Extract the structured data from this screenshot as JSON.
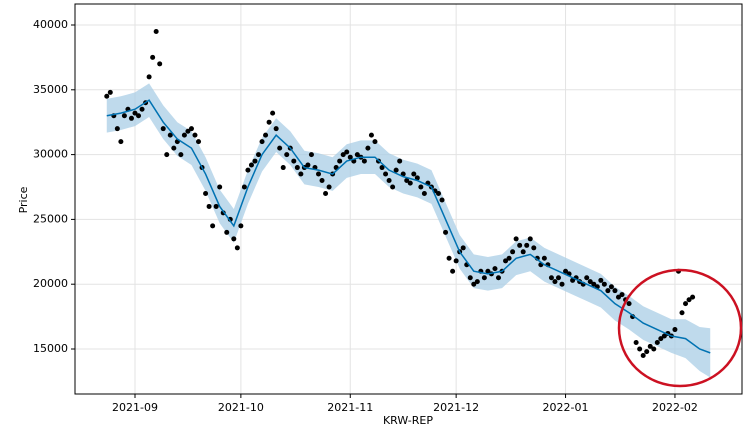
{
  "chart_data": {
    "type": "scatter",
    "xlabel": "KRW-REP",
    "ylabel": "Price",
    "xlim": [
      -17,
      172
    ],
    "ylim": [
      11528,
      41620
    ],
    "xticks": [
      {
        "value": 0,
        "label": "2021-09"
      },
      {
        "value": 30,
        "label": "2021-10"
      },
      {
        "value": 61,
        "label": "2021-11"
      },
      {
        "value": 91,
        "label": "2021-12"
      },
      {
        "value": 122,
        "label": "2022-01"
      },
      {
        "value": 153,
        "label": "2022-02"
      }
    ],
    "yticks": [
      15000,
      20000,
      25000,
      30000,
      35000,
      40000
    ],
    "grid": true,
    "color": "#000000",
    "line_color": "#0072B2",
    "band_color": "#a9cde6",
    "x": [
      -8,
      -7,
      -6,
      -5,
      -4,
      -3,
      -2,
      -1,
      0,
      1,
      2,
      3,
      4,
      5,
      6,
      7,
      8,
      9,
      10,
      11,
      12,
      13,
      14,
      15,
      16,
      17,
      18,
      19,
      20,
      21,
      22,
      23,
      24,
      25,
      26,
      27,
      28,
      29,
      30,
      31,
      32,
      33,
      34,
      35,
      36,
      37,
      38,
      39,
      40,
      41,
      42,
      43,
      44,
      45,
      46,
      47,
      48,
      49,
      50,
      51,
      52,
      53,
      54,
      55,
      56,
      57,
      58,
      59,
      60,
      61,
      62,
      63,
      64,
      65,
      66,
      67,
      68,
      69,
      70,
      71,
      72,
      73,
      74,
      75,
      76,
      77,
      78,
      79,
      80,
      81,
      82,
      83,
      84,
      85,
      86,
      87,
      88,
      89,
      90,
      91,
      92,
      93,
      94,
      95,
      96,
      97,
      98,
      99,
      100,
      101,
      102,
      103,
      104,
      105,
      106,
      107,
      108,
      109,
      110,
      111,
      112,
      113,
      114,
      115,
      116,
      117,
      118,
      119,
      120,
      121,
      122,
      123,
      124,
      125,
      126,
      127,
      128,
      129,
      130,
      131,
      132,
      133,
      134,
      135,
      136,
      137,
      138,
      139,
      140,
      141,
      142,
      143,
      144,
      145,
      146,
      147,
      148,
      149,
      150,
      151,
      152,
      153,
      154,
      155,
      156,
      157,
      158
    ],
    "values": [
      34500,
      34800,
      33000,
      32000,
      31000,
      33000,
      33500,
      32800,
      33200,
      33000,
      33500,
      34000,
      36000,
      37500,
      39500,
      37000,
      32000,
      30000,
      31500,
      30500,
      31000,
      30000,
      31500,
      31800,
      32000,
      31500,
      31000,
      29000,
      27000,
      26000,
      24500,
      26000,
      27500,
      25500,
      24000,
      25000,
      23500,
      22800,
      24500,
      27500,
      28800,
      29200,
      29500,
      30000,
      31000,
      31500,
      32500,
      33200,
      32000,
      30500,
      29000,
      30000,
      30500,
      29500,
      29000,
      28500,
      29000,
      29200,
      30000,
      29000,
      28500,
      28000,
      27000,
      27500,
      28500,
      29000,
      29500,
      30000,
      30200,
      29800,
      29500,
      30000,
      29800,
      29500,
      30500,
      31500,
      31000,
      29500,
      29000,
      28500,
      28000,
      27500,
      28800,
      29500,
      28500,
      28000,
      27800,
      28500,
      28200,
      27500,
      27000,
      27800,
      27500,
      27200,
      27000,
      26500,
      24000,
      22000,
      21000,
      21800,
      22500,
      22800,
      21500,
      20500,
      20000,
      20200,
      21000,
      20500,
      21000,
      20800,
      21200,
      20500,
      21000,
      21800,
      22000,
      22500,
      23500,
      23000,
      22500,
      23000,
      23500,
      22800,
      22000,
      21500,
      22000,
      21500,
      20500,
      20200,
      20500,
      20000,
      21000,
      20800,
      20300,
      20500,
      20200,
      20000,
      20500,
      20200,
      20000,
      19800,
      20300,
      20000,
      19500,
      19800,
      19500,
      19000,
      19200,
      18800,
      18500,
      17500,
      15500,
      15000,
      14500,
      14800,
      15200,
      15000,
      15500,
      15800,
      16000,
      16200,
      16000,
      16500,
      21000,
      17800,
      18500,
      18800,
      19000
    ],
    "forecast_x": [
      -8,
      -4,
      0,
      4,
      8,
      12,
      16,
      20,
      24,
      28,
      32,
      36,
      40,
      44,
      48,
      52,
      56,
      60,
      64,
      68,
      72,
      76,
      80,
      84,
      88,
      92,
      96,
      100,
      104,
      108,
      112,
      116,
      120,
      124,
      128,
      132,
      136,
      140,
      144,
      148,
      152,
      156,
      160,
      163
    ],
    "forecast": [
      33000,
      33200,
      33500,
      34200,
      32500,
      31200,
      30500,
      28500,
      26000,
      24500,
      27500,
      30000,
      31500,
      30500,
      29000,
      28800,
      28500,
      29500,
      29800,
      29800,
      28800,
      28300,
      28000,
      27500,
      25000,
      22500,
      21000,
      20800,
      21000,
      22000,
      22300,
      21500,
      21000,
      20500,
      20000,
      19500,
      18500,
      17800,
      17000,
      16500,
      16000,
      15800,
      15000,
      14700
    ],
    "forecast_lower": [
      31700,
      31900,
      32200,
      32900,
      31200,
      29900,
      29200,
      27200,
      24700,
      23200,
      26200,
      28700,
      30200,
      29200,
      27700,
      27500,
      27200,
      28200,
      28500,
      28500,
      27500,
      27000,
      26700,
      26200,
      23700,
      21200,
      19700,
      19500,
      19700,
      20700,
      21000,
      20200,
      19700,
      19200,
      18700,
      18200,
      17200,
      16500,
      15700,
      15200,
      14700,
      14300,
      13300,
      12800
    ],
    "forecast_upper": [
      34300,
      34500,
      34800,
      35500,
      33800,
      32500,
      31800,
      29800,
      27300,
      25800,
      28800,
      31300,
      32800,
      31800,
      30300,
      30100,
      29800,
      30800,
      31100,
      31100,
      30100,
      29600,
      29300,
      28800,
      26300,
      23800,
      22300,
      22100,
      22300,
      23300,
      23600,
      22800,
      22300,
      21800,
      21300,
      20800,
      19800,
      19100,
      18300,
      17800,
      17300,
      17300,
      16700,
      16600
    ]
  }
}
